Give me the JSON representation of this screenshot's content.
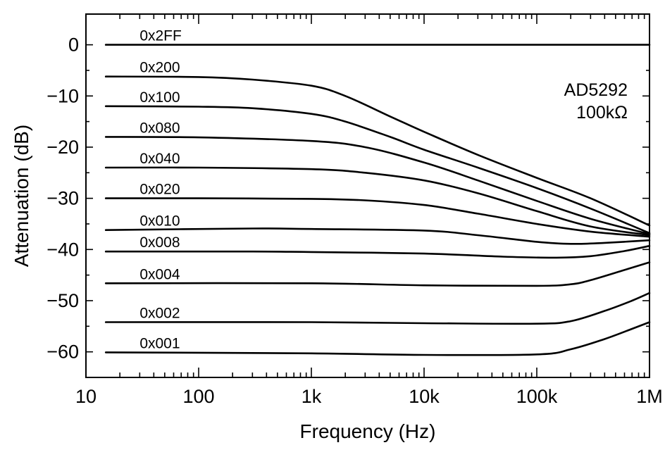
{
  "chart_data": {
    "type": "line",
    "title": "",
    "xlabel": "Frequency (Hz)",
    "ylabel": "Attenuation (dB)",
    "xscale": "log",
    "xlim": [
      10,
      1000000
    ],
    "ylim": [
      -65,
      6
    ],
    "grid": false,
    "xticks": [
      {
        "value": 10,
        "label": "10"
      },
      {
        "value": 100,
        "label": "100"
      },
      {
        "value": 1000,
        "label": "1k"
      },
      {
        "value": 10000,
        "label": "10k"
      },
      {
        "value": 100000,
        "label": "100k"
      },
      {
        "value": 1000000,
        "label": "1M"
      }
    ],
    "yticks": [
      {
        "value": 0,
        "label": "0"
      },
      {
        "value": -10,
        "label": "−10"
      },
      {
        "value": -20,
        "label": "−20"
      },
      {
        "value": -30,
        "label": "−30"
      },
      {
        "value": -40,
        "label": "−40"
      },
      {
        "value": -50,
        "label": "−50"
      },
      {
        "value": -60,
        "label": "−60"
      }
    ],
    "annotation": [
      "AD5292",
      "100kΩ"
    ],
    "series": [
      {
        "name": "0x2FF",
        "points": [
          [
            15,
            0
          ],
          [
            100,
            0
          ],
          [
            1000,
            0
          ],
          [
            10000,
            0
          ],
          [
            100000,
            0
          ],
          [
            1000000,
            0
          ]
        ]
      },
      {
        "name": "0x200",
        "points": [
          [
            15,
            -6.2
          ],
          [
            100,
            -6.3
          ],
          [
            300,
            -6.8
          ],
          [
            1000,
            -8
          ],
          [
            2000,
            -10
          ],
          [
            5000,
            -14
          ],
          [
            10000,
            -17
          ],
          [
            30000,
            -21.5
          ],
          [
            100000,
            -26
          ],
          [
            300000,
            -30
          ],
          [
            1000000,
            -35.3
          ]
        ]
      },
      {
        "name": "0x100",
        "points": [
          [
            15,
            -12
          ],
          [
            100,
            -12.1
          ],
          [
            300,
            -12.4
          ],
          [
            1000,
            -13.5
          ],
          [
            2000,
            -15
          ],
          [
            5000,
            -18
          ],
          [
            10000,
            -20.5
          ],
          [
            30000,
            -24
          ],
          [
            100000,
            -28
          ],
          [
            300000,
            -32
          ],
          [
            1000000,
            -36.8
          ]
        ]
      },
      {
        "name": "0x080",
        "points": [
          [
            15,
            -18
          ],
          [
            100,
            -18.1
          ],
          [
            1000,
            -18.8
          ],
          [
            3000,
            -20
          ],
          [
            10000,
            -23
          ],
          [
            30000,
            -26.5
          ],
          [
            100000,
            -30.5
          ],
          [
            300000,
            -34
          ],
          [
            1000000,
            -37
          ]
        ]
      },
      {
        "name": "0x040",
        "points": [
          [
            15,
            -24
          ],
          [
            100,
            -24
          ],
          [
            1000,
            -24.3
          ],
          [
            3000,
            -25
          ],
          [
            10000,
            -26.5
          ],
          [
            30000,
            -29
          ],
          [
            100000,
            -32.5
          ],
          [
            300000,
            -35.5
          ],
          [
            1000000,
            -37.2
          ]
        ]
      },
      {
        "name": "0x020",
        "points": [
          [
            15,
            -30
          ],
          [
            100,
            -30
          ],
          [
            1000,
            -30.1
          ],
          [
            3000,
            -30.4
          ],
          [
            10000,
            -31.3
          ],
          [
            30000,
            -33
          ],
          [
            100000,
            -35
          ],
          [
            300000,
            -36.5
          ],
          [
            1000000,
            -37.5
          ]
        ]
      },
      {
        "name": "0x010",
        "points": [
          [
            15,
            -36.2
          ],
          [
            300,
            -35.9
          ],
          [
            1000,
            -36
          ],
          [
            10000,
            -36.3
          ],
          [
            30000,
            -37.2
          ],
          [
            100000,
            -38.5
          ],
          [
            200000,
            -38.9
          ],
          [
            400000,
            -38.7
          ],
          [
            1000000,
            -38.2
          ]
        ]
      },
      {
        "name": "0x008",
        "points": [
          [
            15,
            -40.4
          ],
          [
            300,
            -40.4
          ],
          [
            1000,
            -40.5
          ],
          [
            10000,
            -40.8
          ],
          [
            50000,
            -41.4
          ],
          [
            150000,
            -41.6
          ],
          [
            300000,
            -41.3
          ],
          [
            600000,
            -40.3
          ],
          [
            1000000,
            -39.3
          ]
        ]
      },
      {
        "name": "0x004",
        "points": [
          [
            15,
            -46.6
          ],
          [
            1000,
            -46.6
          ],
          [
            10000,
            -47
          ],
          [
            100000,
            -47.1
          ],
          [
            200000,
            -46.8
          ],
          [
            300000,
            -46
          ],
          [
            600000,
            -44
          ],
          [
            1000000,
            -42.5
          ]
        ]
      },
      {
        "name": "0x002",
        "points": [
          [
            15,
            -54.2
          ],
          [
            1000,
            -54.2
          ],
          [
            10000,
            -54.4
          ],
          [
            100000,
            -54.5
          ],
          [
            200000,
            -54
          ],
          [
            400000,
            -52
          ],
          [
            700000,
            -50
          ],
          [
            1000000,
            -48.5
          ]
        ]
      },
      {
        "name": "0x001",
        "points": [
          [
            15,
            -60.1
          ],
          [
            1000,
            -60.3
          ],
          [
            10000,
            -60.6
          ],
          [
            100000,
            -60.5
          ],
          [
            200000,
            -59.5
          ],
          [
            400000,
            -57.5
          ],
          [
            700000,
            -55.5
          ],
          [
            1000000,
            -54.2
          ]
        ]
      }
    ]
  }
}
